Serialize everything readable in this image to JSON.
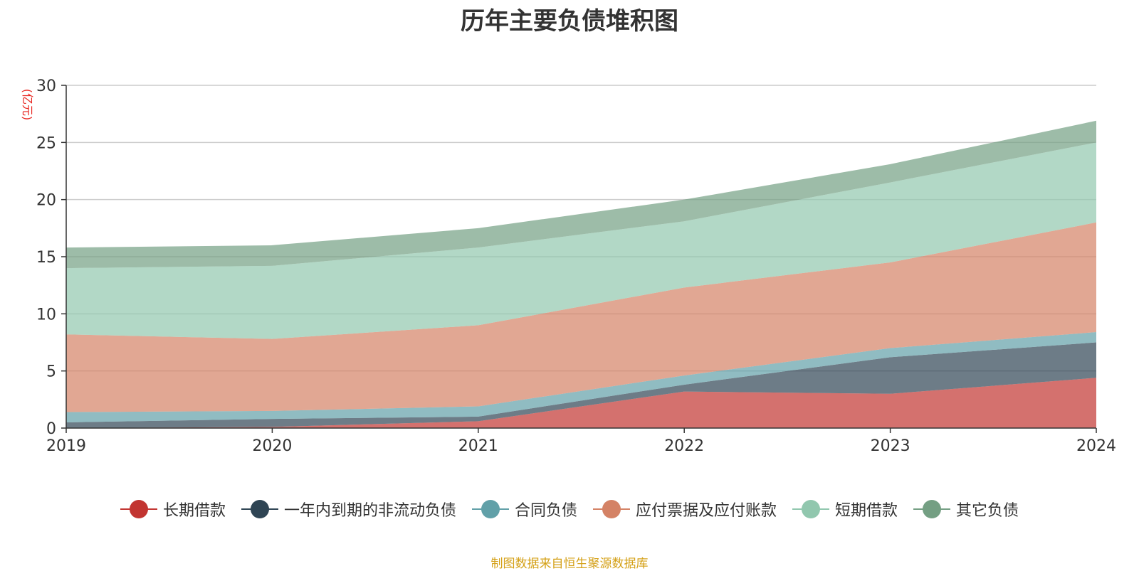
{
  "chart_data": {
    "type": "area",
    "stacked": true,
    "title": "历年主要负债堆积图",
    "ylabel": "(亿元)",
    "xlabel": "",
    "x": [
      "2019",
      "2020",
      "2021",
      "2022",
      "2023",
      "2024"
    ],
    "ylim": [
      0,
      30
    ],
    "yticks": [
      0,
      5,
      10,
      15,
      20,
      25,
      30
    ],
    "grid": true,
    "legend_position": "bottom",
    "series": [
      {
        "name": "长期借款",
        "color": "#c23531",
        "values": [
          0.0,
          0.1,
          0.6,
          3.2,
          3.0,
          4.4
        ]
      },
      {
        "name": "一年内到期的非流动负债",
        "color": "#2f4554",
        "values": [
          0.5,
          0.7,
          0.4,
          0.6,
          3.2,
          3.1
        ]
      },
      {
        "name": "合同负债",
        "color": "#61a0a8",
        "values": [
          0.9,
          0.7,
          0.9,
          0.8,
          0.8,
          0.9
        ]
      },
      {
        "name": "应付票据及应付账款",
        "color": "#d48265",
        "values": [
          6.8,
          6.3,
          7.1,
          7.7,
          7.5,
          9.6
        ]
      },
      {
        "name": "短期借款",
        "color": "#91c7ae",
        "values": [
          5.8,
          6.4,
          6.8,
          5.8,
          7.0,
          7.0
        ]
      },
      {
        "name": "其它负债",
        "color": "#749f83",
        "values": [
          1.8,
          1.8,
          1.7,
          1.9,
          1.6,
          1.9
        ]
      }
    ]
  },
  "source_note": "制图数据来自恒生聚源数据库"
}
